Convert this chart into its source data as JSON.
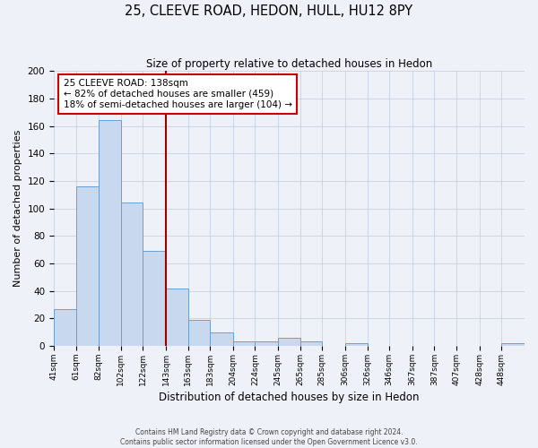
{
  "title": "25, CLEEVE ROAD, HEDON, HULL, HU12 8PY",
  "subtitle": "Size of property relative to detached houses in Hedon",
  "xlabel": "Distribution of detached houses by size in Hedon",
  "ylabel": "Number of detached properties",
  "bar_labels": [
    "41sqm",
    "61sqm",
    "82sqm",
    "102sqm",
    "122sqm",
    "143sqm",
    "163sqm",
    "183sqm",
    "204sqm",
    "224sqm",
    "245sqm",
    "265sqm",
    "285sqm",
    "306sqm",
    "326sqm",
    "346sqm",
    "367sqm",
    "387sqm",
    "407sqm",
    "428sqm",
    "448sqm"
  ],
  "bar_values": [
    27,
    116,
    164,
    104,
    69,
    42,
    19,
    10,
    3,
    3,
    6,
    3,
    0,
    2,
    0,
    0,
    0,
    0,
    0,
    0,
    2
  ],
  "bin_edges": [
    41,
    61,
    82,
    102,
    122,
    143,
    163,
    183,
    204,
    224,
    245,
    265,
    285,
    306,
    326,
    346,
    367,
    387,
    407,
    428,
    448,
    469
  ],
  "bar_color": "#c8d8ef",
  "bar_edge_color": "#6b9fd4",
  "vline_x": 143,
  "vline_color": "#990000",
  "annotation_title": "25 CLEEVE ROAD: 138sqm",
  "annotation_line1": "← 82% of detached houses are smaller (459)",
  "annotation_line2": "18% of semi-detached houses are larger (104) →",
  "annotation_box_color": "#ffffff",
  "annotation_border_color": "#cc0000",
  "ylim": [
    0,
    200
  ],
  "yticks": [
    0,
    20,
    40,
    60,
    80,
    100,
    120,
    140,
    160,
    180,
    200
  ],
  "footer_line1": "Contains HM Land Registry data © Crown copyright and database right 2024.",
  "footer_line2": "Contains public sector information licensed under the Open Government Licence v3.0.",
  "background_color": "#eef2f8",
  "plot_background": "#eef2f8",
  "grid_color": "#c0cce0"
}
